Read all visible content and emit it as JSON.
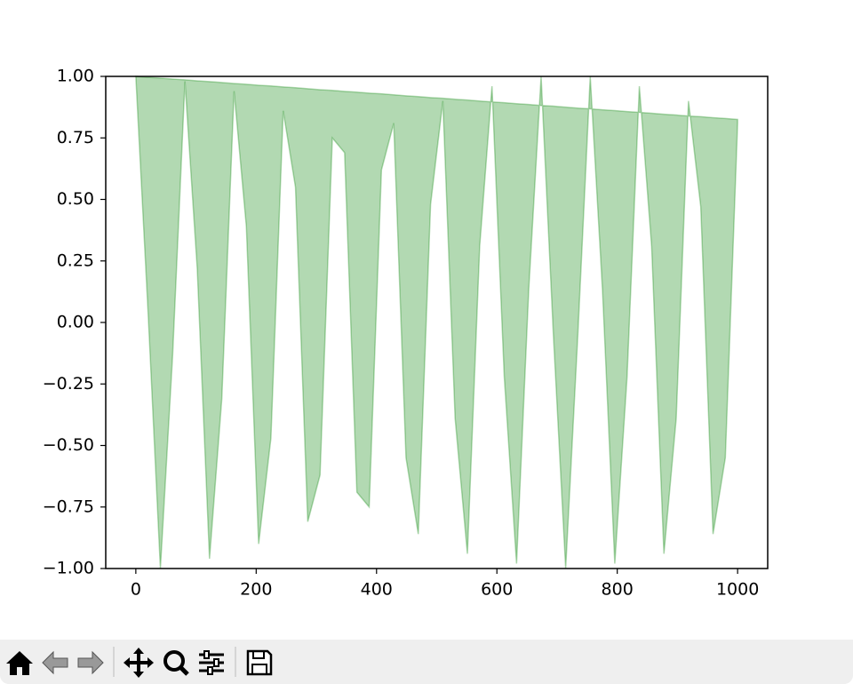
{
  "chart_data": {
    "type": "area",
    "x": [
      0,
      20.41,
      40.82,
      61.22,
      81.63,
      102.04,
      122.45,
      142.86,
      163.27,
      183.67,
      204.08,
      224.49,
      244.9,
      265.31,
      285.71,
      306.12,
      326.53,
      346.94,
      367.35,
      387.76,
      408.16,
      428.57,
      448.98,
      469.39,
      489.8,
      510.2,
      530.61,
      551.02,
      571.43,
      591.84,
      612.24,
      632.65,
      653.06,
      673.47,
      693.88,
      714.29,
      734.69,
      755.1,
      775.51,
      795.92,
      816.33,
      836.73,
      857.14,
      877.55,
      897.96,
      918.37,
      938.78,
      959.18,
      979.59,
      1000
    ],
    "series": [
      {
        "color": "#008000",
        "alpha": 0.3,
        "values": [
          1.0,
          0.04,
          -1.0,
          -0.13,
          0.98,
          0.22,
          -0.96,
          -0.31,
          0.94,
          0.39,
          -0.9,
          -0.47,
          0.86,
          0.55,
          -0.81,
          -0.62,
          0.75,
          0.69,
          -0.69,
          -0.75,
          0.62,
          0.81,
          -0.55,
          -0.86,
          0.48,
          0.9,
          -0.39,
          -0.94,
          0.31,
          0.96,
          -0.22,
          -0.98,
          0.14,
          1.0,
          -0.05,
          -1.0,
          -0.04,
          1.0,
          0.13,
          -0.98,
          -0.22,
          0.96,
          0.31,
          -0.94,
          -0.39,
          0.9,
          0.47,
          -0.86,
          -0.55,
          0.81
        ]
      },
      {
        "color": "#008000",
        "alpha": 0.3,
        "values": [
          1.0,
          0.996,
          0.993,
          0.989,
          0.986,
          0.982,
          0.979,
          0.975,
          0.971,
          0.968,
          0.964,
          0.961,
          0.957,
          0.954,
          0.95,
          0.946,
          0.943,
          0.939,
          0.936,
          0.932,
          0.929,
          0.925,
          0.921,
          0.918,
          0.914,
          0.911,
          0.907,
          0.904,
          0.9,
          0.896,
          0.893,
          0.889,
          0.886,
          0.882,
          0.879,
          0.875,
          0.871,
          0.868,
          0.864,
          0.861,
          0.857,
          0.854,
          0.85,
          0.846,
          0.843,
          0.839,
          0.836,
          0.832,
          0.829,
          0.825
        ]
      }
    ],
    "xlim": [
      -50,
      1050
    ],
    "xticks": [
      0,
      200,
      400,
      600,
      800,
      1000
    ],
    "ylim": [
      -1,
      1
    ],
    "yticks": [
      {
        "value": -1,
        "label": "−1.00"
      },
      {
        "value": -0.75,
        "label": "−0.75"
      },
      {
        "value": -0.5,
        "label": "−0.50"
      },
      {
        "value": -0.25,
        "label": "−0.25"
      },
      {
        "value": 0,
        "label": "0.00"
      },
      {
        "value": 0.25,
        "label": "0.25"
      },
      {
        "value": 0.5,
        "label": "0.50"
      },
      {
        "value": 0.75,
        "label": "0.75"
      },
      {
        "value": 1,
        "label": "1.00"
      }
    ]
  }
}
